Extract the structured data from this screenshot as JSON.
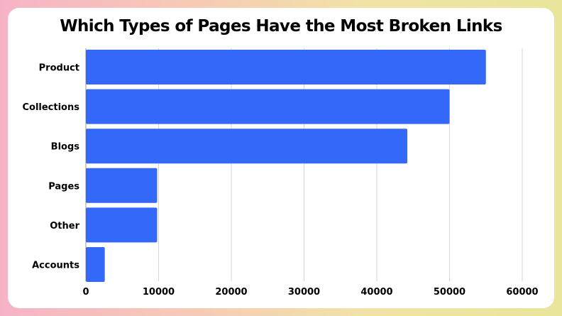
{
  "chart_data": {
    "type": "bar",
    "orientation": "horizontal",
    "title": "Which Types of Pages Have the Most Broken Links",
    "categories": [
      "Product",
      "Collections",
      "Blogs",
      "Pages",
      "Other",
      "Accounts"
    ],
    "values": [
      55000,
      50000,
      44200,
      9800,
      9800,
      2600
    ],
    "xlim": [
      0,
      60000
    ],
    "xticks": [
      "0",
      "10000",
      "20000",
      "30000",
      "40000",
      "50000",
      "60000"
    ],
    "grid": "vertical",
    "bar_color": "#3468f8",
    "grid_color": "#d6d6d6"
  }
}
